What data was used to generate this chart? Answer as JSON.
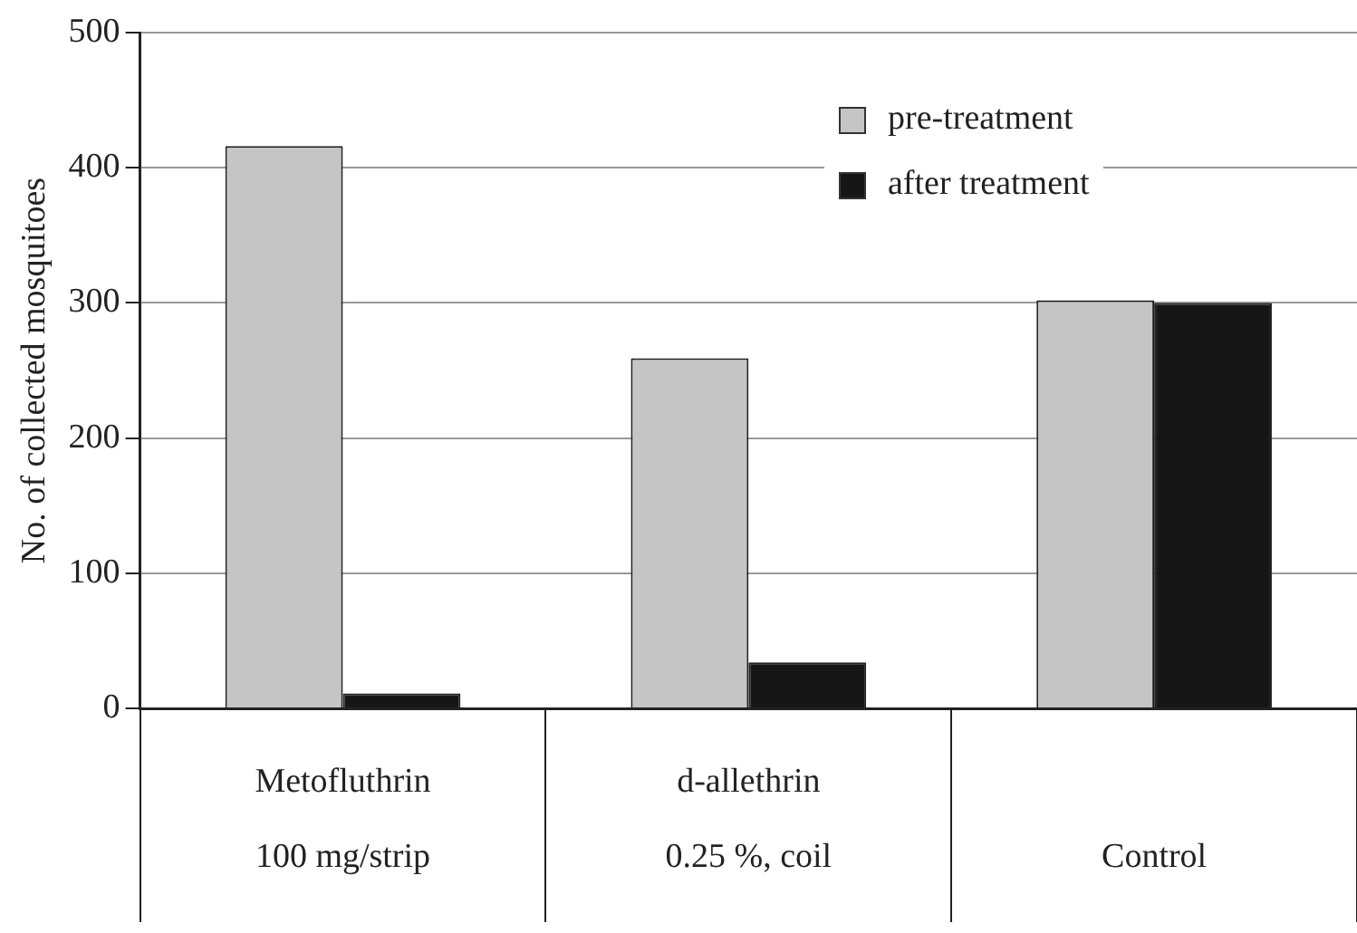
{
  "chart_data": {
    "type": "bar",
    "ylabel": "No. of collected mosquitoes",
    "categories": [
      "Metofluthrin\n100 mg/strip",
      "d-allethrin\n0.25 %, coil",
      "Control"
    ],
    "series": [
      {
        "name": "pre-treatment",
        "color": "#c4c5c4",
        "values": [
          416,
          259,
          302
        ]
      },
      {
        "name": "after treatment",
        "color": "#161616",
        "values": [
          11,
          34,
          300
        ]
      }
    ],
    "ylim": [
      0,
      500
    ],
    "yticks": [
      0,
      100,
      200,
      300,
      400,
      500
    ],
    "grid": "y",
    "legend": "top right"
  }
}
